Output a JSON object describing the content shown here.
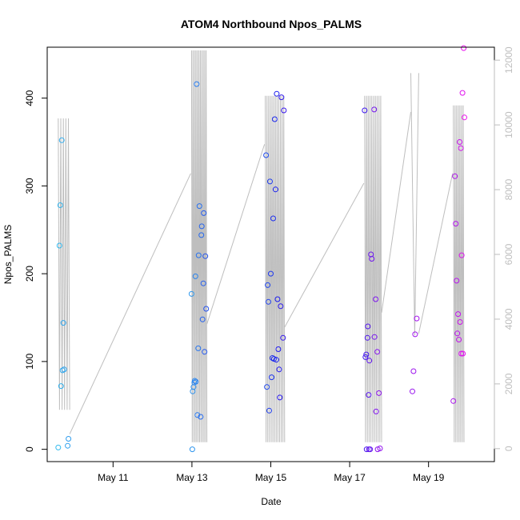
{
  "chart_data": {
    "type": "scatter",
    "title": "ATOM4 Northbound Npos_PALMS",
    "xlabel": "Date",
    "ylabel": "Npos_PALMS",
    "x_unit": "days since May 9",
    "xlim": [
      0.33,
      11.67
    ],
    "ylim": [
      -14,
      458
    ],
    "y2lim": [
      -400,
      12400
    ],
    "x_ticks": [
      {
        "value": 2,
        "label": "May 11"
      },
      {
        "value": 4,
        "label": "May 13"
      },
      {
        "value": 6,
        "label": "May 15"
      },
      {
        "value": 8,
        "label": "May 17"
      },
      {
        "value": 10,
        "label": "May 19"
      }
    ],
    "y_ticks": [
      {
        "value": 0,
        "label": "0"
      },
      {
        "value": 100,
        "label": "100"
      },
      {
        "value": 200,
        "label": "200"
      },
      {
        "value": 300,
        "label": "300"
      },
      {
        "value": 400,
        "label": "400"
      }
    ],
    "y2_ticks": [
      {
        "value": 0,
        "label": "0"
      },
      {
        "value": 2000,
        "label": "2000"
      },
      {
        "value": 4000,
        "label": "4000"
      },
      {
        "value": 6000,
        "label": "6000"
      },
      {
        "value": 8000,
        "label": "8000"
      },
      {
        "value": 10000,
        "label": "10000"
      },
      {
        "value": 12000,
        "label": "12000"
      }
    ],
    "series": [
      {
        "name": "Npos_PALMS",
        "marker": "open-circle",
        "color_gradient": [
          "#33bbee",
          "#1a1aee",
          "#ee11ee"
        ],
        "points": [
          [
            0.61,
            2
          ],
          [
            0.64,
            232
          ],
          [
            0.66,
            278
          ],
          [
            0.68,
            72
          ],
          [
            0.7,
            352
          ],
          [
            0.72,
            90
          ],
          [
            0.74,
            144
          ],
          [
            0.76,
            91
          ],
          [
            0.85,
            4
          ],
          [
            0.87,
            12
          ],
          [
            3.99,
            177
          ],
          [
            4.01,
            0
          ],
          [
            4.02,
            66
          ],
          [
            4.04,
            71
          ],
          [
            4.06,
            76
          ],
          [
            4.07,
            78
          ],
          [
            4.09,
            197
          ],
          [
            4.1,
            77
          ],
          [
            4.12,
            416
          ],
          [
            4.14,
            39
          ],
          [
            4.16,
            115
          ],
          [
            4.17,
            221
          ],
          [
            4.19,
            277
          ],
          [
            4.22,
            37
          ],
          [
            4.24,
            244
          ],
          [
            4.25,
            254
          ],
          [
            4.27,
            148
          ],
          [
            4.29,
            189
          ],
          [
            4.3,
            269
          ],
          [
            4.32,
            111
          ],
          [
            4.34,
            220
          ],
          [
            4.36,
            160
          ],
          [
            5.88,
            335
          ],
          [
            5.9,
            71
          ],
          [
            5.92,
            187
          ],
          [
            5.94,
            168
          ],
          [
            5.96,
            44
          ],
          [
            5.98,
            305
          ],
          [
            6.0,
            200
          ],
          [
            6.02,
            82
          ],
          [
            6.04,
            104
          ],
          [
            6.06,
            263
          ],
          [
            6.08,
            103
          ],
          [
            6.1,
            376
          ],
          [
            6.12,
            296
          ],
          [
            6.14,
            102
          ],
          [
            6.15,
            405
          ],
          [
            6.17,
            171
          ],
          [
            6.19,
            114
          ],
          [
            6.21,
            91
          ],
          [
            6.23,
            59
          ],
          [
            6.25,
            163
          ],
          [
            6.27,
            401
          ],
          [
            6.31,
            127
          ],
          [
            6.33,
            386
          ],
          [
            8.38,
            386
          ],
          [
            8.4,
            105
          ],
          [
            8.42,
            108
          ],
          [
            8.43,
            0
          ],
          [
            8.45,
            127
          ],
          [
            8.46,
            140
          ],
          [
            8.48,
            62
          ],
          [
            8.49,
            0
          ],
          [
            8.5,
            101
          ],
          [
            8.52,
            0
          ],
          [
            8.54,
            222
          ],
          [
            8.56,
            217
          ],
          [
            8.62,
            387
          ],
          [
            8.63,
            128
          ],
          [
            8.66,
            171
          ],
          [
            8.67,
            43
          ],
          [
            8.7,
            111
          ],
          [
            8.71,
            0
          ],
          [
            8.74,
            64
          ],
          [
            8.77,
            1
          ],
          [
            9.59,
            66
          ],
          [
            9.62,
            89
          ],
          [
            9.66,
            131
          ],
          [
            9.7,
            149
          ],
          [
            10.63,
            55
          ],
          [
            10.67,
            311
          ],
          [
            10.69,
            257
          ],
          [
            10.71,
            192
          ],
          [
            10.73,
            132
          ],
          [
            10.75,
            154
          ],
          [
            10.77,
            125
          ],
          [
            10.79,
            350
          ],
          [
            10.8,
            145
          ],
          [
            10.82,
            343
          ],
          [
            10.83,
            109
          ],
          [
            10.84,
            221
          ],
          [
            10.86,
            406
          ],
          [
            10.87,
            109
          ],
          [
            10.89,
            457
          ],
          [
            10.91,
            378
          ]
        ]
      }
    ],
    "overlay_line": {
      "axis": "right",
      "color": "#bebebe",
      "clusters": [
        {
          "x_start": 0.61,
          "x_end": 0.9,
          "n": 10,
          "lo": 1200,
          "hi": 10200
        },
        {
          "x_start": 3.99,
          "x_end": 4.38,
          "n": 22,
          "lo": 200,
          "hi": 12300
        },
        {
          "x_start": 5.86,
          "x_end": 6.35,
          "n": 24,
          "lo": 200,
          "hi": 10900
        },
        {
          "x_start": 8.38,
          "x_end": 8.81,
          "n": 20,
          "lo": 200,
          "hi": 10900
        },
        {
          "x_start": 9.55,
          "x_end": 9.75,
          "n": 3,
          "lo": 3500,
          "hi": 11600
        },
        {
          "x_start": 10.63,
          "x_end": 10.9,
          "n": 14,
          "lo": 200,
          "hi": 10600
        }
      ],
      "links": [
        {
          "from": [
            0.9,
            450
          ],
          "to": [
            3.97,
            8500
          ]
        },
        {
          "from": [
            4.38,
            3850
          ],
          "to": [
            5.84,
            9400
          ]
        },
        {
          "from": [
            6.35,
            3750
          ],
          "to": [
            8.36,
            8200
          ]
        },
        {
          "from": [
            8.81,
            4200
          ],
          "to": [
            9.55,
            10400
          ]
        },
        {
          "from": [
            9.75,
            3550
          ],
          "to": [
            10.61,
            8500
          ]
        }
      ]
    }
  }
}
